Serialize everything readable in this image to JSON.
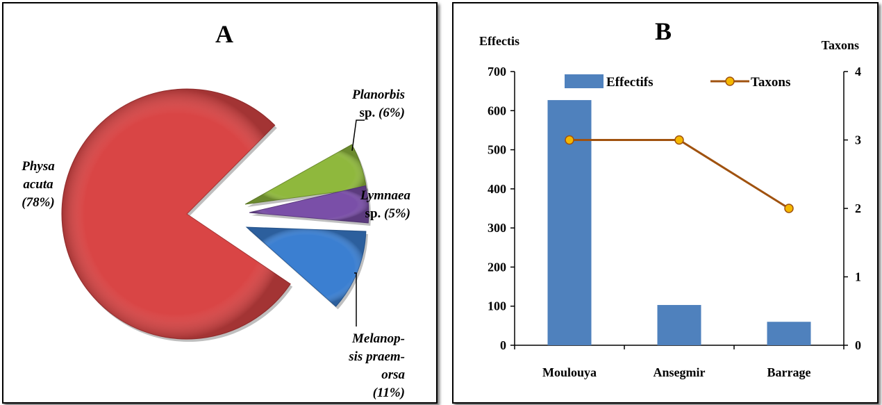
{
  "chart_data": [
    {
      "type": "pie",
      "title": "A",
      "slices": [
        {
          "lines": [
            {
              "text": "Physa",
              "italic": true
            },
            {
              "text": "acuta",
              "italic": true
            },
            {
              "text": "(78%)",
              "italic": true
            }
          ],
          "value": 78,
          "color": "#d94545"
        },
        {
          "lines": [
            {
              "text": "Planorbis",
              "italic": true
            },
            {
              "text": "sp. ",
              "italic": false,
              "tail": "(6%)"
            }
          ],
          "value": 6,
          "color": "#8fb83d"
        },
        {
          "lines": [
            {
              "text": "Lymnaea",
              "italic": true
            },
            {
              "text": "sp. ",
              "italic": false,
              "tail": "(5%)"
            }
          ],
          "value": 5,
          "color": "#7a4fa8"
        },
        {
          "lines": [
            {
              "text": "Melanop-",
              "italic": true
            },
            {
              "text": "sis praem-",
              "italic": true
            },
            {
              "text": "orsa",
              "italic": true
            },
            {
              "text": "(11%)",
              "italic": true
            }
          ],
          "value": 11,
          "color": "#3b7fd1"
        }
      ]
    },
    {
      "type": "bar",
      "title": "B",
      "categories": [
        "Moulouya",
        "Ansegmir",
        "Barrage"
      ],
      "ylabel": "Effectis",
      "y2label": "Taxons",
      "ylim": [
        0,
        700
      ],
      "yticks": [
        0,
        100,
        200,
        300,
        400,
        500,
        600,
        700
      ],
      "y2lim": [
        0,
        4
      ],
      "y2ticks": [
        0,
        1,
        2,
        3,
        4
      ],
      "legend_position": "top",
      "series": [
        {
          "name": "Effectifs",
          "type": "bar",
          "axis": "left",
          "color": "#4f81bd",
          "values": [
            627,
            103,
            60
          ]
        },
        {
          "name": "Taxons",
          "type": "line",
          "axis": "right",
          "color": "#a0520f",
          "marker_color": "#f5b800",
          "values": [
            3,
            3,
            2
          ]
        }
      ]
    }
  ]
}
